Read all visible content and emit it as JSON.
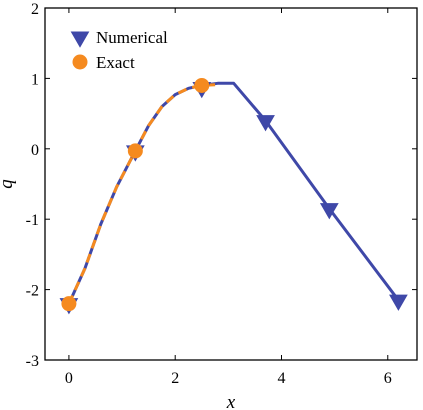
{
  "chart_data": {
    "type": "line",
    "xlabel": "x",
    "ylabel": "q",
    "xlim": [
      -0.45,
      6.55
    ],
    "ylim": [
      -3,
      2
    ],
    "xticks": [
      0,
      2,
      4,
      6
    ],
    "yticks": [
      -3,
      -2,
      -1,
      0,
      1,
      2
    ],
    "x_tick_labels": [
      "0",
      "2",
      "4",
      "6"
    ],
    "y_tick_labels": [
      "-3",
      "-2",
      "-1",
      "0",
      "1",
      "2"
    ],
    "grid": false,
    "legend_position": "top-left",
    "series": [
      {
        "name": "Numerical",
        "color": "#3f48a8",
        "marker": "triangle-down",
        "line": [
          [
            0,
            -2.2
          ],
          [
            0.3,
            -1.7
          ],
          [
            0.6,
            -1.07
          ],
          [
            0.9,
            -0.54
          ],
          [
            1.25,
            -0.03
          ],
          [
            1.5,
            0.33
          ],
          [
            1.75,
            0.6
          ],
          [
            2.0,
            0.77
          ],
          [
            2.25,
            0.86
          ],
          [
            2.5,
            0.9
          ],
          [
            2.8,
            0.93
          ],
          [
            3.1,
            0.93
          ],
          [
            3.7,
            0.4
          ],
          [
            4.9,
            -0.85
          ],
          [
            6.2,
            -2.15
          ]
        ],
        "markers": [
          [
            0,
            -2.2
          ],
          [
            1.25,
            -0.03
          ],
          [
            2.5,
            0.87
          ],
          [
            3.7,
            0.4
          ],
          [
            4.9,
            -0.85
          ],
          [
            6.2,
            -2.15
          ]
        ]
      },
      {
        "name": "Exact",
        "color": "#f58a1f",
        "marker": "circle",
        "line_style": "dashed",
        "line": [
          [
            0,
            -2.2
          ],
          [
            0.3,
            -1.7
          ],
          [
            0.6,
            -1.07
          ],
          [
            0.9,
            -0.54
          ],
          [
            1.25,
            -0.03
          ],
          [
            1.5,
            0.33
          ],
          [
            1.75,
            0.6
          ],
          [
            2.0,
            0.77
          ],
          [
            2.25,
            0.86
          ],
          [
            2.5,
            0.9
          ],
          [
            2.75,
            0.91
          ]
        ],
        "markers": [
          [
            0,
            -2.2
          ],
          [
            1.25,
            -0.03
          ],
          [
            2.5,
            0.9
          ]
        ]
      }
    ]
  }
}
